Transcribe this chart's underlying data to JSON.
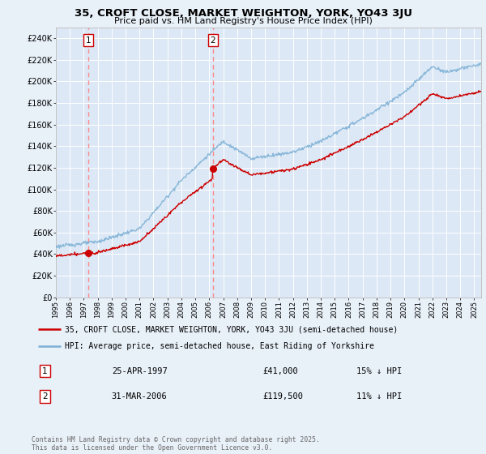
{
  "title": "35, CROFT CLOSE, MARKET WEIGHTON, YORK, YO43 3JU",
  "subtitle": "Price paid vs. HM Land Registry's House Price Index (HPI)",
  "background_color": "#e8f0f8",
  "plot_bg_color": "#dce8f5",
  "ylim": [
    0,
    250000
  ],
  "yticks": [
    0,
    20000,
    40000,
    60000,
    80000,
    100000,
    120000,
    140000,
    160000,
    180000,
    200000,
    220000,
    240000
  ],
  "ytick_labels": [
    "£0",
    "£20K",
    "£40K",
    "£60K",
    "£80K",
    "£100K",
    "£120K",
    "£140K",
    "£160K",
    "£180K",
    "£200K",
    "£220K",
    "£240K"
  ],
  "sale1_year": 1997.32,
  "sale1_price": 41000,
  "sale1_label": "1",
  "sale1_date": "25-APR-1997",
  "sale1_price_str": "£41,000",
  "sale1_hpi_pct": "15% ↓ HPI",
  "sale2_year": 2006.25,
  "sale2_price": 119500,
  "sale2_label": "2",
  "sale2_date": "31-MAR-2006",
  "sale2_price_str": "£119,500",
  "sale2_hpi_pct": "11% ↓ HPI",
  "legend_label_red": "35, CROFT CLOSE, MARKET WEIGHTON, YORK, YO43 3JU (semi-detached house)",
  "legend_label_blue": "HPI: Average price, semi-detached house, East Riding of Yorkshire",
  "footer": "Contains HM Land Registry data © Crown copyright and database right 2025.\nThis data is licensed under the Open Government Licence v3.0.",
  "red_line_color": "#cc0000",
  "blue_line_color": "#7bafd4",
  "dashed_line_color": "#ff8888",
  "xlim_start": 1995,
  "xlim_end": 2025.5
}
